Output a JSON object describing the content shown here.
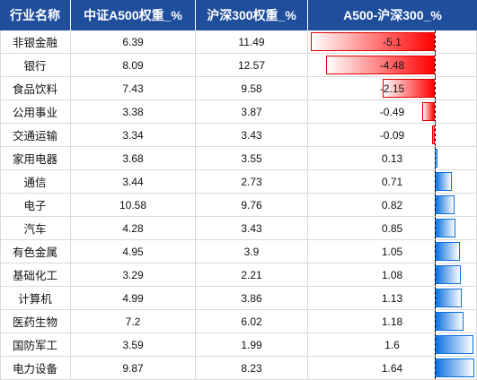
{
  "header": {
    "col_industry": "行业名称",
    "col_a500": "中证A500权重_%",
    "col_hs300": "沪深300权重_%",
    "col_diff": "A500-沪深300_%"
  },
  "colors": {
    "header_bg": "#1f4e9c",
    "negative_bar": "#ff0000",
    "positive_bar": "#0a6fe0"
  },
  "diff_scale": {
    "min": -5.1,
    "max": 1.64
  },
  "rows": [
    {
      "industry": "非银金融",
      "a500": "6.39",
      "hs300": "11.49",
      "diff": "-5.1",
      "diff_value": -5.1
    },
    {
      "industry": "银行",
      "a500": "8.09",
      "hs300": "12.57",
      "diff": "-4.48",
      "diff_value": -4.48
    },
    {
      "industry": "食品饮料",
      "a500": "7.43",
      "hs300": "9.58",
      "diff": "-2.15",
      "diff_value": -2.15
    },
    {
      "industry": "公用事业",
      "a500": "3.38",
      "hs300": "3.87",
      "diff": "-0.49",
      "diff_value": -0.49
    },
    {
      "industry": "交通运输",
      "a500": "3.34",
      "hs300": "3.43",
      "diff": "-0.09",
      "diff_value": -0.09
    },
    {
      "industry": "家用电器",
      "a500": "3.68",
      "hs300": "3.55",
      "diff": "0.13",
      "diff_value": 0.13
    },
    {
      "industry": "通信",
      "a500": "3.44",
      "hs300": "2.73",
      "diff": "0.71",
      "diff_value": 0.71
    },
    {
      "industry": "电子",
      "a500": "10.58",
      "hs300": "9.76",
      "diff": "0.82",
      "diff_value": 0.82
    },
    {
      "industry": "汽车",
      "a500": "4.28",
      "hs300": "3.43",
      "diff": "0.85",
      "diff_value": 0.85
    },
    {
      "industry": "有色金属",
      "a500": "4.95",
      "hs300": "3.9",
      "diff": "1.05",
      "diff_value": 1.05
    },
    {
      "industry": "基础化工",
      "a500": "3.29",
      "hs300": "2.21",
      "diff": "1.08",
      "diff_value": 1.08
    },
    {
      "industry": "计算机",
      "a500": "4.99",
      "hs300": "3.86",
      "diff": "1.13",
      "diff_value": 1.13
    },
    {
      "industry": "医药生物",
      "a500": "7.2",
      "hs300": "6.02",
      "diff": "1.18",
      "diff_value": 1.18
    },
    {
      "industry": "国防军工",
      "a500": "3.59",
      "hs300": "1.99",
      "diff": "1.6",
      "diff_value": 1.6
    },
    {
      "industry": "电力设备",
      "a500": "9.87",
      "hs300": "8.23",
      "diff": "1.64",
      "diff_value": 1.64
    }
  ]
}
